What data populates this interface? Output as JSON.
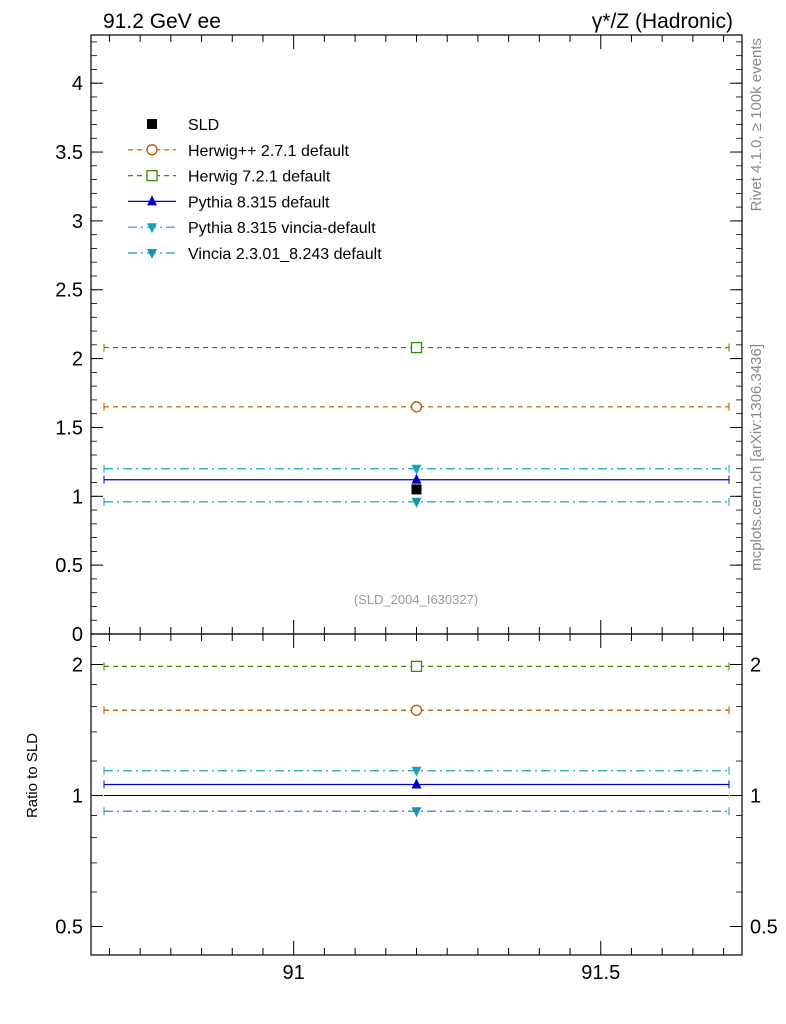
{
  "header": {
    "left_title": "91.2 GeV ee",
    "right_title": "γ*/Z (Hadronic)"
  },
  "side_labels": {
    "rivet": "Rivet 4.1.0, ≥ 100k events",
    "mcplots": "mcplots.cern.ch [arXiv:1306.3436]"
  },
  "watermark": "(SLD_2004_I630327)",
  "chart_data": [
    {
      "type": "line",
      "panel": "main",
      "xlim": [
        90.67,
        91.73
      ],
      "ylim": [
        0,
        4.35
      ],
      "yticks": [
        0,
        0.5,
        1,
        1.5,
        2,
        2.5,
        3,
        3.5,
        4
      ],
      "ytick_labels": [
        "0",
        "0.5",
        "1",
        "1.5",
        "2",
        "2.5",
        "3",
        "3.5",
        "4"
      ],
      "xlabel": "",
      "ylabel": "",
      "legend_position": "top-left",
      "series": [
        {
          "name": "SLD",
          "color": "#000000",
          "marker": "square-filled",
          "dash": "none",
          "x": 91.2,
          "y": 1.05,
          "draw_line": false
        },
        {
          "name": "Herwig++ 2.7.1 default",
          "color": "#b35900",
          "marker": "circle-open",
          "dash": "dashed",
          "x": 91.2,
          "y": 1.65,
          "draw_line": true
        },
        {
          "name": "Herwig 7.2.1 default",
          "color": "#3a8a00",
          "marker": "square-open",
          "dash": "dashed",
          "x": 91.2,
          "y": 2.08,
          "draw_line": true
        },
        {
          "name": "Pythia 8.315 default",
          "color": "#0000cc",
          "marker": "triangle-up",
          "dash": "solid",
          "x": 91.2,
          "y": 1.12,
          "draw_line": true
        },
        {
          "name": "Pythia 8.315 vincia-default",
          "color": "#1aa3b5",
          "marker": "triangle-down",
          "dash": "dashdot",
          "x": 91.2,
          "y": 1.2,
          "draw_line": true
        },
        {
          "name": "Vincia 2.3.01_8.243 default",
          "color": "#1a93b0",
          "marker": "triangle-down",
          "dash": "dashdot",
          "x": 91.2,
          "y": 0.96,
          "draw_line": true
        }
      ]
    },
    {
      "type": "line",
      "panel": "ratio",
      "xlim": [
        90.67,
        91.73
      ],
      "ylim": [
        0.43,
        2.35
      ],
      "yscale": "log",
      "yticks": [
        0.5,
        1,
        2
      ],
      "ytick_labels": [
        "0.5",
        "1",
        "2"
      ],
      "xticks": [
        91,
        91.5
      ],
      "xtick_labels": [
        "91",
        "91.5"
      ],
      "ylabel": "Ratio to SLD",
      "reference_line": 1,
      "series": [
        {
          "name": "Herwig++ 2.7.1 default",
          "color": "#b35900",
          "marker": "circle-open",
          "dash": "dashed",
          "x": 91.2,
          "y": 1.57
        },
        {
          "name": "Herwig 7.2.1 default",
          "color": "#3a8a00",
          "marker": "square-open",
          "dash": "dashed",
          "x": 91.2,
          "y": 1.98
        },
        {
          "name": "Pythia 8.315 default",
          "color": "#0000cc",
          "marker": "triangle-up",
          "dash": "solid",
          "x": 91.2,
          "y": 1.06
        },
        {
          "name": "Pythia 8.315 vincia-default",
          "color": "#1aa3b5",
          "marker": "triangle-down",
          "dash": "dashdot",
          "x": 91.2,
          "y": 1.14
        },
        {
          "name": "Vincia 2.3.01_8.243 default",
          "color": "#1a93b0",
          "marker": "triangle-down",
          "dash": "dashdot",
          "x": 91.2,
          "y": 0.92
        }
      ]
    }
  ]
}
